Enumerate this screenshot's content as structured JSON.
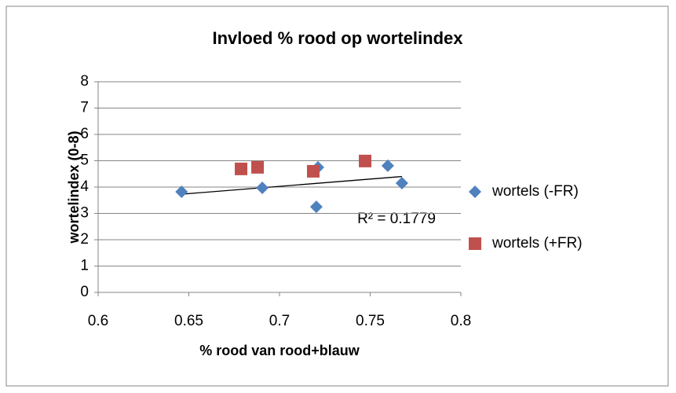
{
  "chart_data": {
    "type": "scatter",
    "title": "Invloed % rood op wortelindex",
    "x_label": "% rood van rood+blauw",
    "y_label": "wortelindex (0-8)",
    "annotation": "R² = 0.1779",
    "xlim": [
      0.6,
      0.8
    ],
    "xticks": [
      0.6,
      0.65,
      0.7,
      0.75,
      0.8
    ],
    "ylim": [
      0,
      8
    ],
    "yticks": [
      0,
      1,
      2,
      3,
      4,
      5,
      6,
      7,
      8
    ],
    "grid": true,
    "legend": "right",
    "trendline": true,
    "series": [
      {
        "name": "wortels (-FR)",
        "color": "#4f81bd",
        "marker": "diamond",
        "x": [
          0.646,
          0.6905,
          0.7203,
          0.7212,
          0.7597,
          0.7675
        ],
        "values": [
          3.82,
          3.97,
          3.25,
          4.75,
          4.81,
          4.15
        ]
      },
      {
        "name": "wortels (+FR)",
        "color": "#c0504d",
        "marker": "square",
        "x": [
          0.6788,
          0.6879,
          0.7186,
          0.7472
        ],
        "values": [
          4.69,
          4.75,
          4.6,
          4.99
        ]
      }
    ]
  }
}
